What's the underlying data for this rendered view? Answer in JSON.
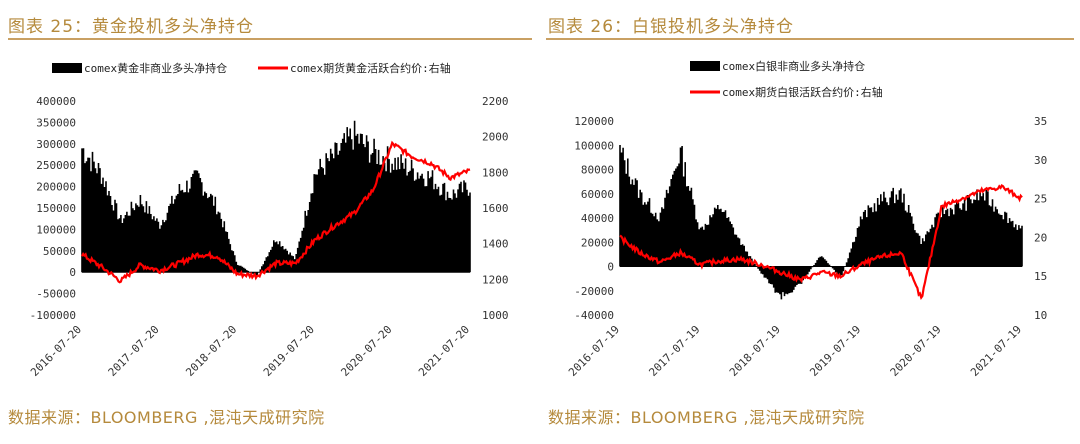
{
  "chart_data": [
    {
      "type": "bar+line",
      "title": "图表 25：黄金投机多头净持仓",
      "source": "数据来源：BLOOMBERG ,混沌天成研究院",
      "series": [
        {
          "name": "comex黄金非商业多头净持仓",
          "kind": "bar",
          "axis": "left",
          "color": "#000000",
          "x": [
            "2016-07",
            "2016-10",
            "2017-01",
            "2017-04",
            "2017-07",
            "2017-10",
            "2018-01",
            "2018-04",
            "2018-07",
            "2018-10",
            "2019-01",
            "2019-04",
            "2019-07",
            "2019-10",
            "2020-01",
            "2020-04",
            "2020-07",
            "2020-10",
            "2021-01",
            "2021-04",
            "2021-07"
          ],
          "values": [
            290000,
            230000,
            120000,
            170000,
            110000,
            190000,
            220000,
            150000,
            20000,
            -10000,
            80000,
            30000,
            230000,
            270000,
            320000,
            280000,
            260000,
            240000,
            220000,
            180000,
            200000
          ]
        },
        {
          "name": "comex期货黄金活跃合约价:右轴",
          "kind": "line",
          "axis": "right",
          "color": "#ff0000",
          "x": [
            "2016-07",
            "2016-10",
            "2017-01",
            "2017-04",
            "2017-07",
            "2017-10",
            "2018-01",
            "2018-04",
            "2018-07",
            "2018-10",
            "2019-01",
            "2019-04",
            "2019-07",
            "2019-10",
            "2020-01",
            "2020-04",
            "2020-07",
            "2020-10",
            "2021-01",
            "2021-04",
            "2021-07"
          ],
          "values": [
            1340,
            1270,
            1190,
            1280,
            1250,
            1290,
            1340,
            1330,
            1230,
            1220,
            1290,
            1290,
            1420,
            1500,
            1570,
            1700,
            1960,
            1890,
            1850,
            1770,
            1810
          ]
        }
      ],
      "x_tick_labels": [
        "2016-07-20",
        "2017-07-20",
        "2018-07-20",
        "2019-07-20",
        "2020-07-20",
        "2021-07-20"
      ],
      "y_left": {
        "ticks": [
          "400000",
          "350000",
          "300000",
          "250000",
          "200000",
          "150000",
          "100000",
          "50000",
          "0",
          "-50000",
          "-100000"
        ],
        "min": -100000,
        "max": 400000
      },
      "y_right": {
        "ticks": [
          "2200",
          "2000",
          "1800",
          "1600",
          "1400",
          "1200",
          "1000"
        ],
        "min": 1000,
        "max": 2200
      },
      "legend_position": "top"
    },
    {
      "type": "bar+line",
      "title": "图表 26：白银投机多头净持仓",
      "source": "数据来源：BLOOMBERG ,混沌天成研究院",
      "series": [
        {
          "name": "comex白银非商业多头净持仓",
          "kind": "bar",
          "axis": "left",
          "color": "#000000",
          "x": [
            "2016-07",
            "2016-10",
            "2017-01",
            "2017-04",
            "2017-07",
            "2017-10",
            "2018-01",
            "2018-04",
            "2018-07",
            "2018-10",
            "2019-01",
            "2019-04",
            "2019-07",
            "2019-10",
            "2020-01",
            "2020-04",
            "2020-07",
            "2020-10",
            "2021-01",
            "2021-04",
            "2021-07"
          ],
          "values": [
            95000,
            60000,
            40000,
            95000,
            30000,
            50000,
            20000,
            -5000,
            -25000,
            -15000,
            10000,
            -10000,
            40000,
            55000,
            60000,
            20000,
            45000,
            50000,
            60000,
            45000,
            30000
          ]
        },
        {
          "name": "comex期货白银活跃合约价:右轴",
          "kind": "line",
          "axis": "right",
          "color": "#ff0000",
          "x": [
            "2016-07",
            "2016-10",
            "2017-01",
            "2017-04",
            "2017-07",
            "2017-10",
            "2018-01",
            "2018-04",
            "2018-07",
            "2018-10",
            "2019-01",
            "2019-04",
            "2019-07",
            "2019-10",
            "2020-01",
            "2020-04",
            "2020-07",
            "2020-10",
            "2021-01",
            "2021-04",
            "2021-07"
          ],
          "values": [
            20.0,
            18.0,
            16.8,
            18.0,
            16.5,
            17.0,
            17.2,
            16.5,
            15.5,
            14.5,
            15.5,
            15.0,
            16.5,
            17.5,
            18.0,
            12.0,
            24.0,
            25.0,
            26.0,
            26.5,
            25.0
          ]
        }
      ],
      "x_tick_labels": [
        "2016-07-19",
        "2017-07-19",
        "2018-07-19",
        "2019-07-19",
        "2020-07-19",
        "2021-07-19"
      ],
      "y_left": {
        "ticks": [
          "120000",
          "100000",
          "80000",
          "60000",
          "40000",
          "20000",
          "0",
          "-20000",
          "-40000"
        ],
        "min": -40000,
        "max": 120000
      },
      "y_right": {
        "ticks": [
          "35",
          "30",
          "25",
          "20",
          "15",
          "10"
        ],
        "min": 10,
        "max": 35
      },
      "legend_position": "top"
    }
  ]
}
